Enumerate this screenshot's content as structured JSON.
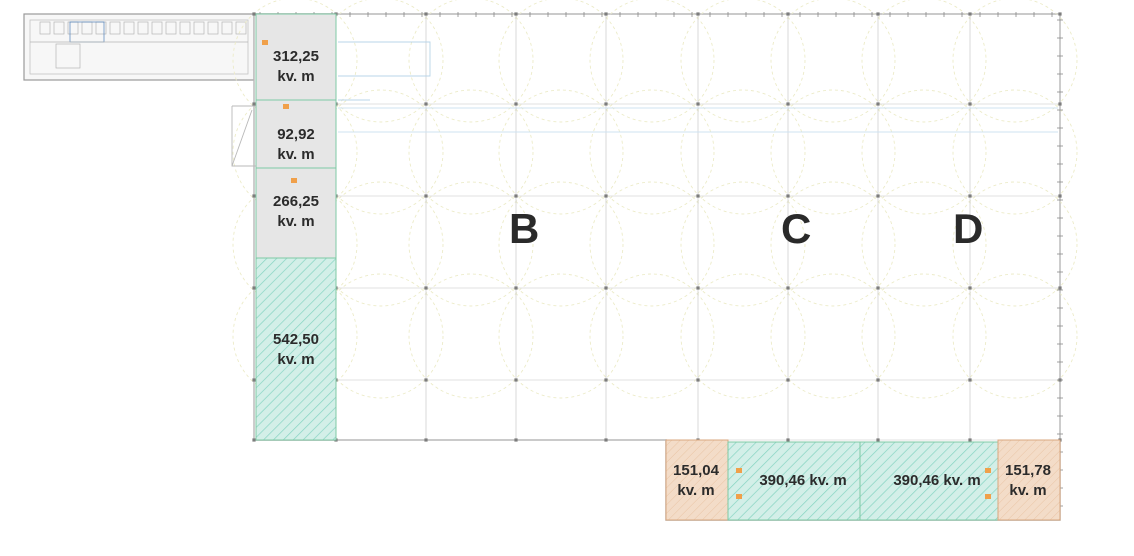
{
  "plan": {
    "blocks": [
      {
        "id": "b",
        "letter": "B"
      },
      {
        "id": "c",
        "letter": "C"
      },
      {
        "id": "d",
        "letter": "D"
      }
    ],
    "zones": [
      {
        "id": "office-top",
        "value": "312,25",
        "unit": "kv. m",
        "fill": "#e6e6e6"
      },
      {
        "id": "office-middle",
        "value": "92,92",
        "unit": "kv. m",
        "fill": "#e6e6e6"
      },
      {
        "id": "office-lower",
        "value": "266,25",
        "unit": "kv. m",
        "fill": "#e6e6e6"
      },
      {
        "id": "hatched-left",
        "value": "542,50",
        "unit": "kv. m",
        "fill": "#d3efe8"
      },
      {
        "id": "bottom-left",
        "value": "151,04",
        "unit": "kv. m",
        "fill": "#f3dcc8"
      },
      {
        "id": "bottom-mid-1",
        "value": "390,46",
        "unit": "kv. m",
        "fill": "#d3efe8"
      },
      {
        "id": "bottom-mid-2",
        "value": "390,46",
        "unit": "kv. m",
        "fill": "#d3efe8"
      },
      {
        "id": "bottom-right",
        "value": "151,78",
        "unit": "kv. m",
        "fill": "#f3dcc8"
      }
    ],
    "colors": {
      "outline": "#9a9a9a",
      "grid": "#c8c8c8",
      "dashed_circles": "#ecebc8",
      "hatch": "#86d4c2",
      "zone_border": "#7fc9a5"
    }
  }
}
